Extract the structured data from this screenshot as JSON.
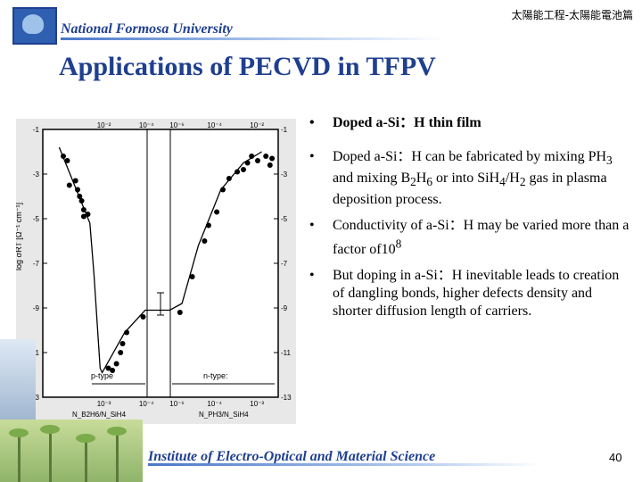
{
  "header": {
    "university": "National Formosa University",
    "chinese_title": "太陽能工程-太陽能電池篇",
    "slide_title": "Applications of PECVD in TFPV"
  },
  "figure": {
    "y_axis_label": "log σRT [Ω⁻¹ cm⁻¹]",
    "top_ticks": [
      "10⁻²",
      "10⁻⁴",
      "10⁻⁶",
      "10⁻⁴",
      "10⁻²"
    ],
    "bottom_ticks": [
      "10⁻³",
      "10⁻⁴",
      "10⁻⁶",
      "10⁻⁴",
      "10⁻³"
    ],
    "y_ticks": [
      "-1",
      "-3",
      "-5",
      "-7",
      "-9",
      "-11",
      "-13"
    ],
    "region_left": "p-type",
    "region_right": "n-type:",
    "x_label_left": "N_B2H6/N_SiH4",
    "x_label_right": "N_PH3/N_SiH4"
  },
  "bullets": [
    {
      "mark": "•",
      "text": "Doped a-Si：H thin film"
    },
    {
      "mark": "•",
      "parts": [
        "Doped a-Si：H can be fabricated by mixing PH",
        "3",
        " and mixing B",
        "2",
        "H",
        "6",
        " or into SiH",
        "4",
        "/H",
        "2",
        " gas in plasma deposition process."
      ]
    },
    {
      "mark": "•",
      "parts": [
        "Conductivity of a-Si：H may be varied more than a factor of10",
        "8"
      ]
    },
    {
      "mark": "•",
      "text": " But doping in a-Si：H  inevitable leads to creation of dangling bonds, higher defects density and shorter diffusion length  of carriers."
    }
  ],
  "footer": {
    "institute": "Institute of Electro-Optical and Material Science",
    "page_number": "40"
  },
  "chart_data": {
    "type": "scatter",
    "x": [
      -1.5,
      -1.3,
      -1.2,
      -0.9,
      -0.8,
      -0.7,
      -0.6,
      -0.5,
      -0.5,
      -0.3,
      0.7,
      0.9,
      1.1,
      1.3,
      1.4,
      1.6,
      2.4,
      4.2,
      4.8,
      5.4,
      5.6,
      6.0,
      6.3,
      6.6,
      7.0,
      7.3,
      7.5,
      7.7,
      8.0,
      8.4,
      8.6,
      8.7
    ],
    "y": [
      -2.2,
      -2.4,
      -3.5,
      -3.3,
      -3.7,
      -4.0,
      -4.2,
      -4.6,
      -4.9,
      -4.8,
      -11.7,
      -11.8,
      -11.5,
      -11.0,
      -10.6,
      -10.1,
      -9.4,
      -9.2,
      -7.6,
      -6.0,
      -5.3,
      -4.7,
      -3.7,
      -3.2,
      -2.9,
      -2.8,
      -2.5,
      -2.2,
      -2.4,
      -2.2,
      -2.6,
      -2.3
    ],
    "curve_x": [
      -1.7,
      -0.2,
      0.0,
      0.3,
      0.4,
      1.5,
      2.5,
      3.2,
      3.7,
      4.3,
      5.1,
      6.2,
      7.3,
      8.2
    ],
    "curve_y": [
      -1.8,
      -5.2,
      -7.5,
      -11.7,
      -11.9,
      -10.1,
      -9.1,
      -9.1,
      -9.1,
      -8.8,
      -6.2,
      -3.7,
      -2.5,
      -2.0
    ],
    "xlim": [
      -2.5,
      9.0
    ],
    "ylim": [
      -13,
      -1
    ]
  }
}
